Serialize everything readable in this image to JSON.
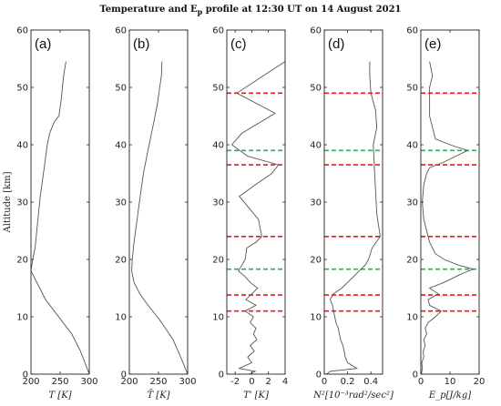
{
  "figure": {
    "title": "Temperature and E_p profile at 12:30 UT on 14 August 2021",
    "ylabel": "Altitude [km]"
  },
  "colors": {
    "line": "#555555",
    "red": "#e8181e",
    "green": "#19b84a",
    "axis": "#222222"
  },
  "chart_data": [
    {
      "type": "line",
      "panel": "(a)",
      "xlabel": "T [K]",
      "xlim": [
        200,
        300
      ],
      "ylim": [
        0,
        60
      ],
      "xticks": [
        200,
        250,
        300
      ],
      "yticks": [
        0,
        10,
        20,
        30,
        40,
        50,
        60
      ],
      "grid": false,
      "series": [
        {
          "values_xy": [
            [
              300,
              0
            ],
            [
              285,
              4
            ],
            [
              270,
              7
            ],
            [
              255,
              9
            ],
            [
              240,
              11
            ],
            [
              225,
              13
            ],
            [
              215,
              15
            ],
            [
              205,
              17
            ],
            [
              200,
              18
            ],
            [
              203,
              20
            ],
            [
              207,
              22
            ],
            [
              210,
              25
            ],
            [
              213,
              28
            ],
            [
              216,
              31
            ],
            [
              220,
              34
            ],
            [
              224,
              37
            ],
            [
              228,
              40
            ],
            [
              232,
              42
            ],
            [
              240,
              44
            ],
            [
              248,
              45
            ],
            [
              252,
              48
            ],
            [
              256,
              52
            ],
            [
              260,
              54.5
            ]
          ]
        }
      ],
      "hlines": []
    },
    {
      "type": "line",
      "panel": "(b)",
      "xlabel": "T̄ [K]",
      "xlim": [
        200,
        300
      ],
      "ylim": [
        0,
        60
      ],
      "xticks": [
        200,
        250,
        300
      ],
      "yticks": [
        0,
        10,
        20,
        30,
        40,
        50,
        60
      ],
      "grid": false,
      "series": [
        {
          "values_xy": [
            [
              300,
              0
            ],
            [
              288,
              3
            ],
            [
              275,
              6
            ],
            [
              262,
              8
            ],
            [
              248,
              10
            ],
            [
              232,
              12
            ],
            [
              218,
              14
            ],
            [
              208,
              16
            ],
            [
              204,
              18
            ],
            [
              205,
              20
            ],
            [
              208,
              23
            ],
            [
              212,
              26
            ],
            [
              216,
              29
            ],
            [
              220,
              32
            ],
            [
              224,
              35
            ],
            [
              230,
              38
            ],
            [
              236,
              41
            ],
            [
              242,
              44
            ],
            [
              248,
              47
            ],
            [
              252,
              50
            ],
            [
              255,
              52
            ],
            [
              256,
              54.5
            ]
          ]
        }
      ],
      "hlines": []
    },
    {
      "type": "line",
      "panel": "(c)",
      "xlabel": "T' [K]",
      "xlim": [
        -3,
        4
      ],
      "ylim": [
        0,
        60
      ],
      "xticks": [
        -2,
        0,
        2,
        4
      ],
      "yticks": [
        0,
        10,
        20,
        30,
        40,
        50,
        60
      ],
      "grid": false,
      "series": [
        {
          "values_xy": [
            [
              -0.3,
              0
            ],
            [
              0.4,
              0.5
            ],
            [
              -1.5,
              1
            ],
            [
              0,
              2
            ],
            [
              -0.5,
              3
            ],
            [
              0.3,
              4
            ],
            [
              -0.2,
              5
            ],
            [
              0.6,
              6
            ],
            [
              0.2,
              7
            ],
            [
              0.5,
              8
            ],
            [
              -0.2,
              9
            ],
            [
              0.2,
              10
            ],
            [
              -0.8,
              11
            ],
            [
              0.5,
              12
            ],
            [
              -0.7,
              13
            ],
            [
              0,
              14
            ],
            [
              0.7,
              15
            ],
            [
              -0.2,
              16
            ],
            [
              -0.8,
              17
            ],
            [
              -1.6,
              18
            ],
            [
              -1.2,
              19
            ],
            [
              -0.8,
              20
            ],
            [
              -0.6,
              22
            ],
            [
              0.5,
              23
            ],
            [
              1.2,
              24
            ],
            [
              0.8,
              27
            ],
            [
              -1.5,
              31
            ],
            [
              0.4,
              33
            ],
            [
              2.4,
              35
            ],
            [
              3.2,
              36.5
            ],
            [
              -0.5,
              38
            ],
            [
              -2.4,
              40
            ],
            [
              -1.2,
              42
            ],
            [
              2.8,
              45.5
            ],
            [
              -1.8,
              49
            ],
            [
              4,
              54.5
            ]
          ]
        }
      ],
      "hlines": [
        {
          "y": 49,
          "color": "red"
        },
        {
          "y": 39,
          "color": "green"
        },
        {
          "y": 36.5,
          "color": "red"
        },
        {
          "y": 24,
          "color": "red"
        },
        {
          "y": 18.3,
          "color": "green"
        },
        {
          "y": 13.8,
          "color": "red"
        },
        {
          "y": 11,
          "color": "red"
        }
      ]
    },
    {
      "type": "line",
      "panel": "(d)",
      "xlabel": "N²[10⁻³rad²/sec²]",
      "xlim": [
        0,
        0.5
      ],
      "ylim": [
        0,
        60
      ],
      "xticks": [
        0,
        0.2,
        0.4
      ],
      "yticks": [
        0,
        10,
        20,
        30,
        40,
        50,
        60
      ],
      "grid": false,
      "series": [
        {
          "values_xy": [
            [
              0.02,
              0
            ],
            [
              0.05,
              0.5
            ],
            [
              0.28,
              1
            ],
            [
              0.2,
              2
            ],
            [
              0.18,
              3
            ],
            [
              0.17,
              4
            ],
            [
              0.16,
              5
            ],
            [
              0.14,
              6
            ],
            [
              0.13,
              7
            ],
            [
              0.12,
              8
            ],
            [
              0.1,
              9
            ],
            [
              0.09,
              10
            ],
            [
              0.07,
              12
            ],
            [
              0.05,
              13
            ],
            [
              0.08,
              14
            ],
            [
              0.15,
              15
            ],
            [
              0.2,
              16
            ],
            [
              0.25,
              17
            ],
            [
              0.3,
              18
            ],
            [
              0.35,
              19
            ],
            [
              0.38,
              20
            ],
            [
              0.41,
              22
            ],
            [
              0.48,
              24
            ],
            [
              0.45,
              28
            ],
            [
              0.44,
              32
            ],
            [
              0.43,
              36
            ],
            [
              0.42,
              40
            ],
            [
              0.45,
              43
            ],
            [
              0.44,
              46
            ],
            [
              0.4,
              49
            ],
            [
              0.39,
              52
            ],
            [
              0.39,
              54.5
            ]
          ]
        }
      ],
      "hlines": [
        {
          "y": 49,
          "color": "red"
        },
        {
          "y": 39,
          "color": "green"
        },
        {
          "y": 36.5,
          "color": "red"
        },
        {
          "y": 24,
          "color": "red"
        },
        {
          "y": 18.3,
          "color": "green"
        },
        {
          "y": 13.8,
          "color": "red"
        },
        {
          "y": 11,
          "color": "red"
        }
      ]
    },
    {
      "type": "line",
      "panel": "(e)",
      "xlabel": "E_p[J/kg]",
      "xlim": [
        0,
        20
      ],
      "ylim": [
        0,
        60
      ],
      "xticks": [
        0,
        10,
        20
      ],
      "yticks": [
        0,
        10,
        20,
        30,
        40,
        50,
        60
      ],
      "grid": false,
      "series": [
        {
          "values_xy": [
            [
              0.2,
              0
            ],
            [
              0.5,
              1
            ],
            [
              0.3,
              2
            ],
            [
              1,
              3
            ],
            [
              0.8,
              4
            ],
            [
              1.5,
              5
            ],
            [
              1,
              6
            ],
            [
              2,
              7
            ],
            [
              1.5,
              8
            ],
            [
              2.5,
              9
            ],
            [
              5,
              10
            ],
            [
              7,
              11
            ],
            [
              3,
              12
            ],
            [
              2.5,
              13
            ],
            [
              6,
              14
            ],
            [
              3,
              15
            ],
            [
              8,
              16
            ],
            [
              14,
              17.5
            ],
            [
              18,
              18.3
            ],
            [
              13,
              19
            ],
            [
              8,
              20
            ],
            [
              5,
              21
            ],
            [
              4,
              22
            ],
            [
              3,
              23
            ],
            [
              2,
              25
            ],
            [
              1,
              27
            ],
            [
              0.5,
              30
            ],
            [
              1,
              33
            ],
            [
              2,
              35
            ],
            [
              3,
              36
            ],
            [
              8,
              37
            ],
            [
              16,
              39
            ],
            [
              10,
              40
            ],
            [
              5,
              41
            ],
            [
              4,
              43
            ],
            [
              3,
              45
            ],
            [
              3,
              48
            ],
            [
              3,
              50
            ],
            [
              4,
              52
            ],
            [
              3,
              54.5
            ]
          ]
        }
      ],
      "hlines": [
        {
          "y": 49,
          "color": "red"
        },
        {
          "y": 39,
          "color": "green"
        },
        {
          "y": 36.5,
          "color": "red"
        },
        {
          "y": 24,
          "color": "red"
        },
        {
          "y": 18.3,
          "color": "green"
        },
        {
          "y": 13.8,
          "color": "red"
        },
        {
          "y": 11,
          "color": "red"
        }
      ]
    }
  ]
}
